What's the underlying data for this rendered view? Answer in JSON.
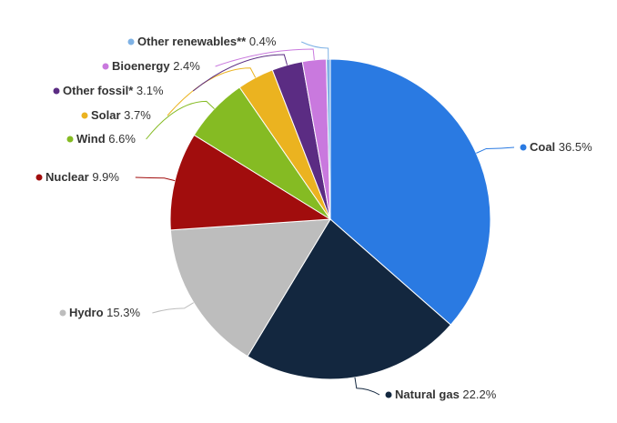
{
  "chart_data": {
    "type": "pie",
    "title": "",
    "unit": "%",
    "slices": [
      {
        "name": "Coal",
        "value": 36.5,
        "value_label": "36.5%",
        "color": "#2a7ae2"
      },
      {
        "name": "Natural gas",
        "value": 22.2,
        "value_label": "22.2%",
        "color": "#13273f"
      },
      {
        "name": "Hydro",
        "value": 15.3,
        "value_label": "15.3%",
        "color": "#bdbdbd"
      },
      {
        "name": "Nuclear",
        "value": 9.9,
        "value_label": "9.9%",
        "color": "#a10d0d"
      },
      {
        "name": "Wind",
        "value": 6.6,
        "value_label": "6.6%",
        "color": "#85bb23"
      },
      {
        "name": "Solar",
        "value": 3.7,
        "value_label": "3.7%",
        "color": "#ebb320"
      },
      {
        "name": "Other fossil*",
        "value": 3.1,
        "value_label": "3.1%",
        "color": "#5b2c83"
      },
      {
        "name": "Bioenergy",
        "value": 2.4,
        "value_label": "2.4%",
        "color": "#c979de"
      },
      {
        "name": "Other renewables**",
        "value": 0.4,
        "value_label": "0.4%",
        "color": "#7fb2e5"
      }
    ],
    "start_angle_deg": 0,
    "direction": "clockwise",
    "legend": "none",
    "data_labels": "outside-with-connectors"
  }
}
